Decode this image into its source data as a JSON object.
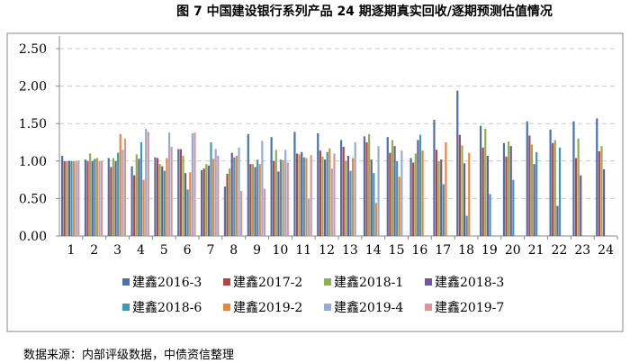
{
  "title": "图 7  中国建设银行系列产品 24 期逐期真实回收/逐期预测估值情况",
  "source": "数据来源：内部评级数据，中债资信整理",
  "chart_data": {
    "type": "bar",
    "title": "图 7  中国建设银行系列产品 24 期逐期真实回收/逐期预测估值情况",
    "xlabel": "",
    "ylabel": "",
    "ylim": [
      0,
      2.5
    ],
    "yticks": [
      "0.00",
      "0.50",
      "1.00",
      "1.50",
      "2.00",
      "2.50"
    ],
    "grid": true,
    "legend_position": "bottom",
    "categories": [
      "1",
      "2",
      "3",
      "4",
      "5",
      "6",
      "7",
      "8",
      "9",
      "10",
      "11",
      "12",
      "13",
      "14",
      "15",
      "16",
      "17",
      "18",
      "19",
      "20",
      "21",
      "22",
      "23",
      "24"
    ],
    "series": [
      {
        "name": "建鑫2016-3",
        "color": "#4a72b0",
        "values": [
          1.07,
          1.02,
          1.04,
          0.93,
          1.05,
          1.16,
          0.88,
          0.66,
          1.36,
          1.32,
          1.39,
          1.37,
          1.28,
          1.33,
          1.32,
          1.04,
          1.55,
          1.94,
          1.47,
          1.24,
          1.53,
          1.42,
          1.53,
          1.57
        ]
      },
      {
        "name": "建鑫2017-2",
        "color": "#b84240",
        "values": [
          1.0,
          1.0,
          0.92,
          0.81,
          1.04,
          1.16,
          0.9,
          0.83,
          0.96,
          1.0,
          1.1,
          1.14,
          1.19,
          1.25,
          1.11,
          0.98,
          1.15,
          1.35,
          1.18,
          1.06,
          1.34,
          1.24,
          1.04,
          1.13
        ]
      },
      {
        "name": "建鑫2018-1",
        "color": "#8fb04e",
        "values": [
          1.0,
          1.1,
          1.04,
          1.09,
          0.96,
          1.07,
          0.96,
          0.9,
          0.96,
          1.15,
          1.09,
          1.06,
          1.0,
          1.36,
          1.28,
          1.1,
          1.0,
          1.21,
          1.43,
          1.26,
          1.22,
          1.28,
          1.3,
          1.2
        ]
      },
      {
        "name": "建鑫2018-3",
        "color": "#71589a",
        "values": [
          1.0,
          1.0,
          1.0,
          1.03,
          0.93,
          0.84,
          0.94,
          1.11,
          0.92,
          0.86,
          1.12,
          1.02,
          1.07,
          1.02,
          1.2,
          1.28,
          1.02,
          0.97,
          1.07,
          1.2,
          0.96,
          0.4,
          0.81,
          0.89
        ]
      },
      {
        "name": "建鑫2018-6",
        "color": "#3b9ab6",
        "values": [
          1.0,
          1.03,
          1.11,
          1.25,
          0.87,
          0.62,
          1.25,
          1.05,
          1.02,
          1.02,
          1.05,
          1.12,
          0.87,
          0.84,
          1.0,
          1.35,
          0.69,
          0.27,
          0.56,
          0.75,
          1.12,
          1.18,
          null,
          null
        ]
      },
      {
        "name": "建鑫2019-2",
        "color": "#e8873a",
        "values": [
          1.0,
          1.04,
          1.36,
          0.75,
          1.04,
          0.85,
          1.03,
          1.07,
          0.96,
          1.01,
          1.04,
          1.17,
          1.04,
          0.44,
          0.79,
          1.14,
          1.25,
          1.11,
          null,
          null,
          null,
          null,
          null,
          null
        ]
      },
      {
        "name": "建鑫2019-4",
        "color": "#95add6",
        "values": [
          1.0,
          1.0,
          1.15,
          1.43,
          1.38,
          1.37,
          1.16,
          1.18,
          1.27,
          1.15,
          0.5,
          0.9,
          1.25,
          1.2,
          1.14,
          null,
          null,
          null,
          null,
          null,
          null,
          null,
          null,
          null
        ]
      },
      {
        "name": "建鑫2019-7",
        "color": "#da9594",
        "values": [
          1.0,
          1.0,
          1.3,
          1.39,
          1.19,
          1.38,
          1.07,
          0.6,
          0.63,
          0.98,
          1.08,
          1.1,
          null,
          null,
          null,
          null,
          null,
          null,
          null,
          null,
          null,
          null,
          null,
          null
        ]
      }
    ]
  }
}
